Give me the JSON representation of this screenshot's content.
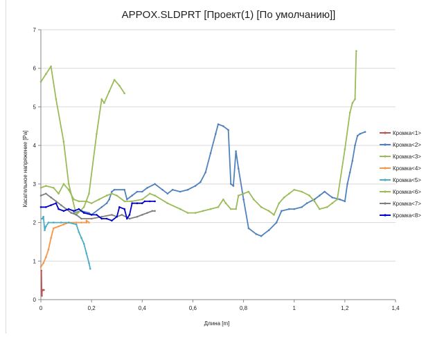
{
  "chart_data": {
    "type": "line",
    "title": "APPOX.SLDPRT [Проект(1) [По умолчанию]]",
    "xlabel": "Длина [m]",
    "ylabel": "Касательное напряжение [Pa]",
    "xlim": [
      0,
      1.4
    ],
    "ylim": [
      0,
      7
    ],
    "x_ticks": [
      "0",
      "0,2",
      "0,4",
      "0,6",
      "0,8",
      "1",
      "1,2",
      "1,4"
    ],
    "x_tick_values": [
      0,
      0.2,
      0.4,
      0.6,
      0.8,
      1,
      1.2,
      1.4
    ],
    "y_ticks": [
      "0",
      "1",
      "2",
      "3",
      "4",
      "5",
      "6",
      "7"
    ],
    "y_tick_values": [
      0,
      1,
      2,
      3,
      4,
      5,
      6,
      7
    ],
    "grid": "horizontal",
    "legend_position": "right",
    "series": [
      {
        "name": "Кромка<1>",
        "color": "#c0504d",
        "points": [
          [
            0.002,
            0.75
          ],
          [
            0.003,
            0.25
          ],
          [
            0.004,
            0.1
          ],
          [
            0.005,
            0.25
          ],
          [
            0.007,
            0.25
          ],
          [
            0.01,
            0.25
          ],
          [
            0.012,
            0.25
          ]
        ]
      },
      {
        "name": "Кромка<2>",
        "color": "#4f81bd",
        "points": [
          [
            0.13,
            2.25
          ],
          [
            0.16,
            2.3
          ],
          [
            0.19,
            2.25
          ],
          [
            0.2,
            2.2
          ],
          [
            0.24,
            2.4
          ],
          [
            0.26,
            2.5
          ],
          [
            0.27,
            2.6
          ],
          [
            0.28,
            2.8
          ],
          [
            0.29,
            2.85
          ],
          [
            0.33,
            2.85
          ],
          [
            0.34,
            2.6
          ],
          [
            0.36,
            2.7
          ],
          [
            0.38,
            2.8
          ],
          [
            0.4,
            2.8
          ],
          [
            0.42,
            2.9
          ],
          [
            0.45,
            3.0
          ],
          [
            0.48,
            2.85
          ],
          [
            0.5,
            2.75
          ],
          [
            0.52,
            2.85
          ],
          [
            0.55,
            2.8
          ],
          [
            0.58,
            2.85
          ],
          [
            0.61,
            2.95
          ],
          [
            0.63,
            3.05
          ],
          [
            0.65,
            3.3
          ],
          [
            0.67,
            3.8
          ],
          [
            0.69,
            4.3
          ],
          [
            0.7,
            4.55
          ],
          [
            0.72,
            4.5
          ],
          [
            0.74,
            4.4
          ],
          [
            0.75,
            3.0
          ],
          [
            0.76,
            2.95
          ],
          [
            0.77,
            3.85
          ],
          [
            0.78,
            3.4
          ],
          [
            0.8,
            2.6
          ],
          [
            0.82,
            1.85
          ],
          [
            0.85,
            1.7
          ],
          [
            0.87,
            1.65
          ],
          [
            0.9,
            1.8
          ],
          [
            0.93,
            2.0
          ],
          [
            0.95,
            2.3
          ],
          [
            0.98,
            2.35
          ],
          [
            1.0,
            2.35
          ],
          [
            1.03,
            2.4
          ],
          [
            1.05,
            2.5
          ],
          [
            1.08,
            2.6
          ],
          [
            1.1,
            2.7
          ],
          [
            1.12,
            2.8
          ],
          [
            1.15,
            2.65
          ],
          [
            1.18,
            2.6
          ],
          [
            1.2,
            2.55
          ],
          [
            1.21,
            3.0
          ],
          [
            1.22,
            3.3
          ],
          [
            1.23,
            3.6
          ],
          [
            1.24,
            4.0
          ],
          [
            1.25,
            4.25
          ],
          [
            1.26,
            4.3
          ],
          [
            1.28,
            4.35
          ]
        ]
      },
      {
        "name": "Кромка<3>",
        "color": "#9bbb59",
        "points": [
          [
            0.0,
            2.9
          ],
          [
            0.02,
            2.95
          ],
          [
            0.05,
            2.9
          ],
          [
            0.07,
            2.75
          ],
          [
            0.09,
            3.0
          ],
          [
            0.11,
            2.85
          ],
          [
            0.13,
            2.6
          ],
          [
            0.15,
            2.55
          ],
          [
            0.18,
            2.55
          ],
          [
            0.2,
            2.5
          ],
          [
            0.23,
            2.6
          ],
          [
            0.26,
            2.7
          ],
          [
            0.28,
            2.75
          ],
          [
            0.3,
            2.7
          ],
          [
            0.33,
            2.55
          ],
          [
            0.36,
            2.55
          ],
          [
            0.4,
            2.6
          ],
          [
            0.43,
            2.75
          ],
          [
            0.45,
            2.7
          ],
          [
            0.5,
            2.5
          ],
          [
            0.55,
            2.35
          ],
          [
            0.58,
            2.25
          ],
          [
            0.61,
            2.25
          ],
          [
            0.64,
            2.3
          ],
          [
            0.67,
            2.35
          ],
          [
            0.7,
            2.4
          ],
          [
            0.72,
            2.6
          ],
          [
            0.73,
            2.5
          ],
          [
            0.75,
            2.35
          ],
          [
            0.77,
            2.35
          ],
          [
            0.78,
            2.7
          ],
          [
            0.8,
            2.75
          ],
          [
            0.82,
            2.8
          ],
          [
            0.84,
            2.6
          ],
          [
            0.87,
            2.4
          ],
          [
            0.9,
            2.3
          ],
          [
            0.92,
            2.2
          ],
          [
            0.94,
            2.5
          ],
          [
            0.96,
            2.65
          ],
          [
            0.98,
            2.75
          ],
          [
            1.0,
            2.85
          ],
          [
            1.03,
            2.8
          ],
          [
            1.06,
            2.7
          ],
          [
            1.08,
            2.55
          ],
          [
            1.1,
            2.35
          ],
          [
            1.13,
            2.4
          ],
          [
            1.15,
            2.5
          ],
          [
            1.17,
            2.6
          ],
          [
            1.2,
            3.9
          ],
          [
            1.22,
            4.85
          ],
          [
            1.23,
            5.1
          ],
          [
            1.24,
            5.2
          ],
          [
            1.245,
            6.45
          ]
        ]
      },
      {
        "name": "Кромка<4>",
        "color": "#f79646",
        "points": [
          [
            0.0,
            0.85
          ],
          [
            0.01,
            0.95
          ],
          [
            0.02,
            1.1
          ],
          [
            0.03,
            1.3
          ],
          [
            0.04,
            1.6
          ],
          [
            0.05,
            1.85
          ],
          [
            0.07,
            1.9
          ],
          [
            0.09,
            1.95
          ],
          [
            0.11,
            2.0
          ],
          [
            0.14,
            2.0
          ],
          [
            0.16,
            2.0
          ],
          [
            0.18,
            2.0
          ],
          [
            0.18,
            2.05
          ],
          [
            0.19,
            2.0
          ]
        ]
      },
      {
        "name": "Кромка<5>",
        "color": "#4bacc6",
        "points": [
          [
            0.005,
            2.1
          ],
          [
            0.01,
            2.15
          ],
          [
            0.015,
            1.8
          ],
          [
            0.02,
            1.9
          ],
          [
            0.03,
            2.0
          ],
          [
            0.05,
            2.0
          ],
          [
            0.08,
            2.0
          ],
          [
            0.11,
            2.0
          ],
          [
            0.14,
            1.95
          ],
          [
            0.15,
            1.75
          ],
          [
            0.16,
            1.6
          ],
          [
            0.17,
            1.45
          ],
          [
            0.18,
            1.2
          ],
          [
            0.19,
            0.95
          ],
          [
            0.195,
            0.8
          ]
        ]
      },
      {
        "name": "Кромка<6>",
        "color": "#9bbb59",
        "points": [
          [
            0.0,
            5.65
          ],
          [
            0.02,
            5.85
          ],
          [
            0.04,
            6.05
          ],
          [
            0.06,
            5.2
          ],
          [
            0.09,
            4.1
          ],
          [
            0.11,
            3.0
          ],
          [
            0.14,
            2.2
          ],
          [
            0.17,
            2.4
          ],
          [
            0.19,
            2.75
          ],
          [
            0.22,
            4.3
          ],
          [
            0.24,
            5.2
          ],
          [
            0.25,
            5.1
          ],
          [
            0.27,
            5.4
          ],
          [
            0.29,
            5.7
          ],
          [
            0.31,
            5.55
          ],
          [
            0.33,
            5.35
          ]
        ]
      },
      {
        "name": "Кромка<7>",
        "color": "#7f7f7f",
        "points": [
          [
            0.0,
            2.7
          ],
          [
            0.02,
            2.75
          ],
          [
            0.04,
            2.65
          ],
          [
            0.06,
            2.55
          ],
          [
            0.08,
            2.45
          ],
          [
            0.1,
            2.35
          ],
          [
            0.12,
            2.25
          ],
          [
            0.14,
            2.2
          ],
          [
            0.16,
            2.1
          ],
          [
            0.2,
            2.1
          ],
          [
            0.24,
            2.15
          ],
          [
            0.28,
            2.2
          ],
          [
            0.3,
            2.15
          ],
          [
            0.32,
            2.2
          ],
          [
            0.35,
            2.1
          ],
          [
            0.38,
            2.15
          ],
          [
            0.4,
            2.2
          ],
          [
            0.42,
            2.25
          ],
          [
            0.44,
            2.3
          ],
          [
            0.45,
            2.3
          ]
        ]
      },
      {
        "name": "Кромка<8>",
        "color": "#0000cc",
        "points": [
          [
            0.0,
            2.4
          ],
          [
            0.02,
            2.4
          ],
          [
            0.04,
            2.45
          ],
          [
            0.06,
            2.5
          ],
          [
            0.07,
            2.35
          ],
          [
            0.09,
            2.3
          ],
          [
            0.11,
            2.35
          ],
          [
            0.13,
            2.3
          ],
          [
            0.15,
            2.35
          ],
          [
            0.17,
            2.25
          ],
          [
            0.2,
            2.2
          ],
          [
            0.22,
            2.2
          ],
          [
            0.24,
            2.1
          ],
          [
            0.26,
            2.1
          ],
          [
            0.28,
            2.05
          ],
          [
            0.3,
            2.15
          ],
          [
            0.31,
            2.4
          ],
          [
            0.33,
            2.35
          ],
          [
            0.34,
            2.1
          ],
          [
            0.35,
            2.2
          ],
          [
            0.36,
            2.5
          ],
          [
            0.38,
            2.5
          ],
          [
            0.4,
            2.5
          ],
          [
            0.41,
            2.55
          ],
          [
            0.43,
            2.55
          ],
          [
            0.45,
            2.55
          ]
        ]
      }
    ]
  }
}
